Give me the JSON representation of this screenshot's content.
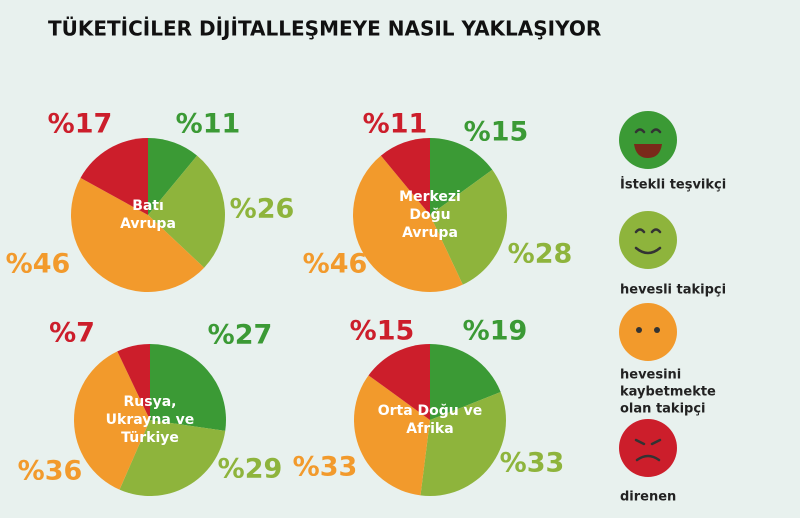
{
  "title": "TÜKETİCİLER DİJİTALLEŞMEYE NASIL YAKLAŞIYOR",
  "legend": {
    "labels": [
      [
        "İstekli teşvikçi"
      ],
      [
        "hevesli takipçi"
      ],
      [
        "hevesini",
        "kaybetmekte",
        "olan takipçi"
      ],
      [
        "direnen"
      ]
    ],
    "colors": [
      "#3b9a35",
      "#8eb43c",
      "#f29a2c",
      "#cc1e2b"
    ]
  },
  "chart_data": [
    {
      "type": "pie",
      "title": [
        "Batı",
        "Avrupa"
      ],
      "values": [
        11,
        26,
        46,
        17
      ],
      "value_labels": [
        "%11",
        "%26",
        "%46",
        "%17"
      ]
    },
    {
      "type": "pie",
      "title": [
        "Merkezi",
        "Doğu",
        "Avrupa"
      ],
      "values": [
        15,
        28,
        46,
        11
      ],
      "value_labels": [
        "%15",
        "%28",
        "%46",
        "%11"
      ]
    },
    {
      "type": "pie",
      "title": [
        "Rusya,",
        "Ukrayna ve",
        "Türkiye"
      ],
      "values": [
        27,
        29,
        36,
        7
      ],
      "value_labels": [
        "%27",
        "%29",
        "%36",
        "%7"
      ]
    },
    {
      "type": "pie",
      "title": [
        "Orta Doğu ve",
        "Afrika"
      ],
      "values": [
        19,
        33,
        33,
        15
      ],
      "value_labels": [
        "%19",
        "%33",
        "%33",
        "%15"
      ]
    }
  ]
}
